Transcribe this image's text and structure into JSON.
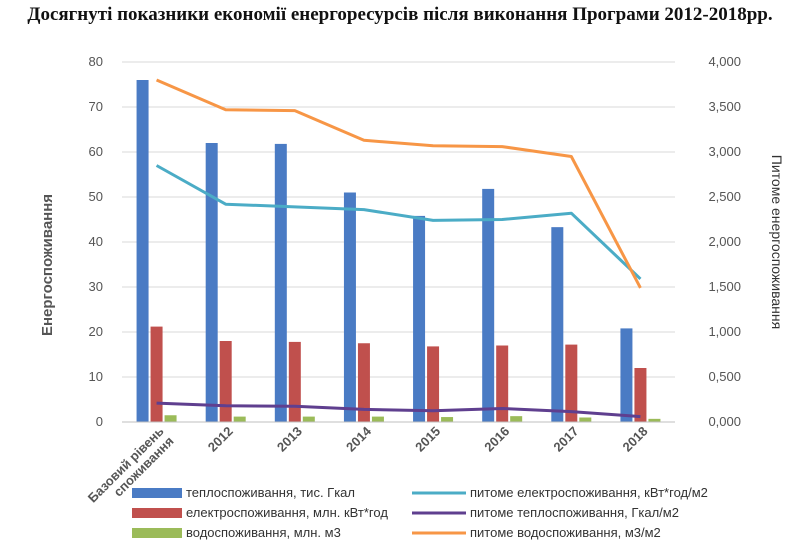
{
  "chart_data": {
    "title": "Досягнуті показники економії енергоресурсів після виконання Програми 2012-2018рр.",
    "type": "bar",
    "categories": [
      "Базовий рівень споживання",
      "2012",
      "2013",
      "2014",
      "2015",
      "2016",
      "2017",
      "2018"
    ],
    "ylabel": "Енергоспоживання",
    "y2label": "Питоме енергоспоживання",
    "ylim": [
      0,
      80
    ],
    "y2lim": [
      0,
      4000
    ],
    "y_ticks": [
      "0",
      "10",
      "20",
      "30",
      "40",
      "50",
      "60",
      "70",
      "80"
    ],
    "y2_ticks": [
      "0,000",
      "0,500",
      "1,000",
      "1,500",
      "2,000",
      "2,500",
      "3,000",
      "3,500",
      "4,000"
    ],
    "grid": true,
    "legend_position": "bottom",
    "bar_series": [
      {
        "name": "теплоспоживання, тис. Гкал",
        "color": "#4a7bc4",
        "values": [
          76,
          62,
          61.8,
          51,
          45.8,
          51.8,
          43.3,
          20.8
        ]
      },
      {
        "name": "електроспоживання, млн. кВт*год",
        "color": "#c0504d",
        "values": [
          21.2,
          18,
          17.8,
          17.5,
          16.8,
          17,
          17.2,
          12
        ]
      },
      {
        "name": "водоспоживання, млн. м3",
        "color": "#9bbb59",
        "values": [
          1.5,
          1.2,
          1.2,
          1.2,
          1.1,
          1.3,
          1.0,
          0.7
        ]
      }
    ],
    "line_series": [
      {
        "name": "питоме електроспоживання, кВт*год/м2",
        "color": "#4bacc6",
        "values": [
          2850,
          2420,
          2390,
          2360,
          2240,
          2250,
          2320,
          1590
        ]
      },
      {
        "name": "питоме теплоспоживання, Гкал/м2",
        "color": "#5f3f8f",
        "values": [
          210,
          180,
          175,
          140,
          125,
          150,
          115,
          60
        ]
      },
      {
        "name": "питоме водоспоживання, м3/м2",
        "color": "#f79646",
        "values": [
          3800,
          3470,
          3460,
          3130,
          3070,
          3060,
          2950,
          1490
        ]
      }
    ]
  }
}
